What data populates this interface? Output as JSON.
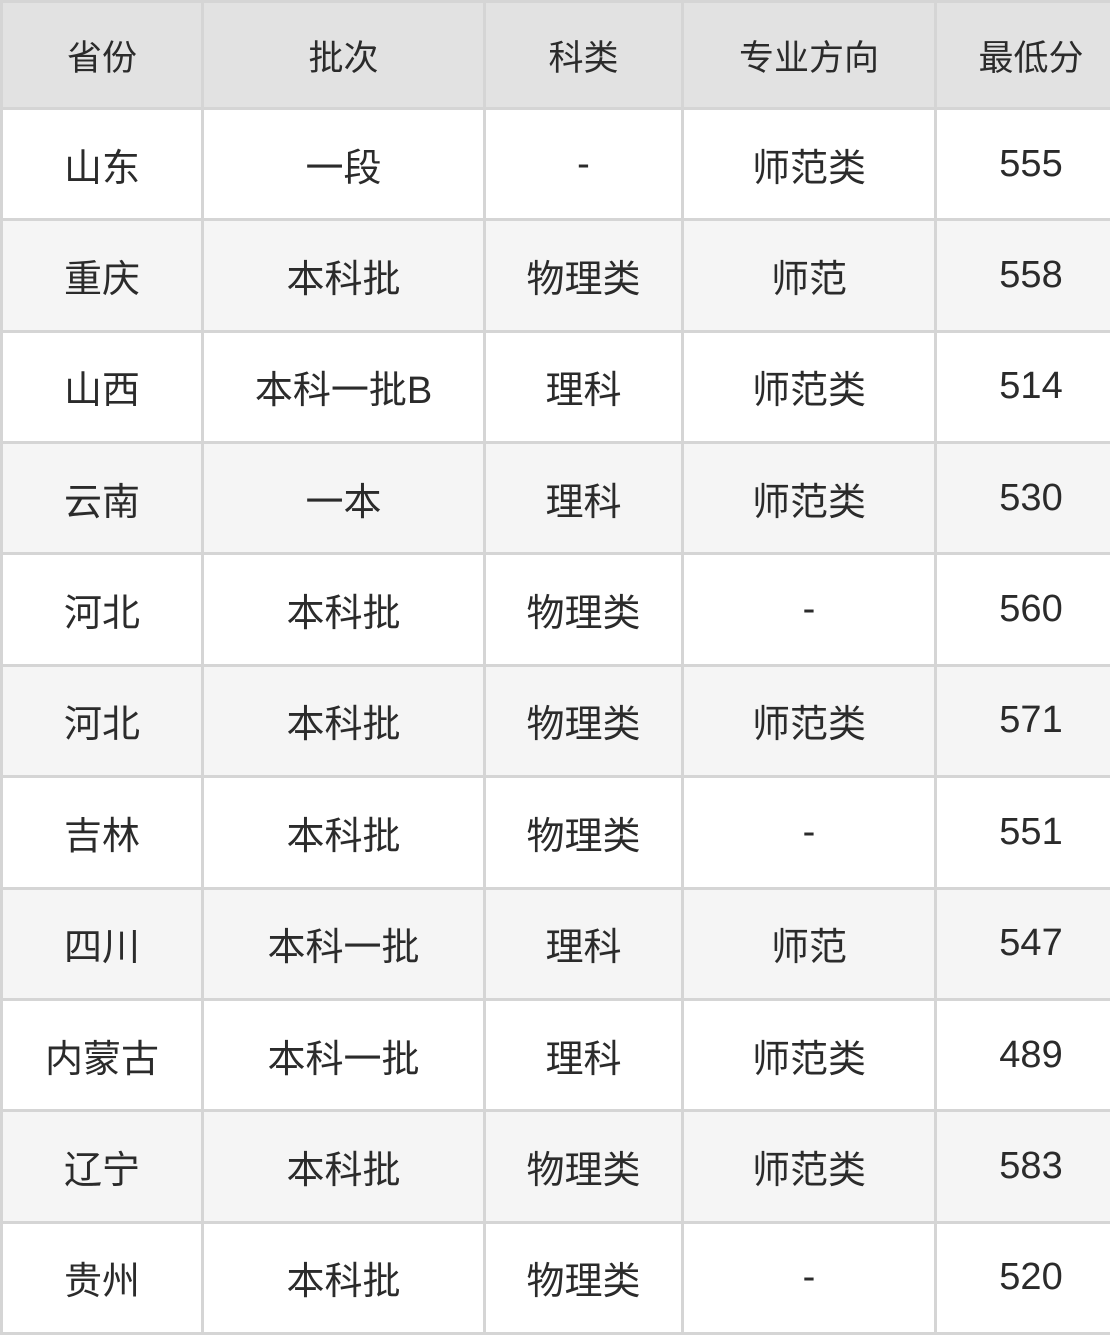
{
  "chart_data": {
    "type": "table",
    "columns": [
      "省份",
      "批次",
      "科类",
      "专业方向",
      "最低分"
    ],
    "rows": [
      [
        "山东",
        "一段",
        "-",
        "师范类",
        555
      ],
      [
        "重庆",
        "本科批",
        "物理类",
        "师范",
        558
      ],
      [
        "山西",
        "本科一批B",
        "理科",
        "师范类",
        514
      ],
      [
        "云南",
        "一本",
        "理科",
        "师范类",
        530
      ],
      [
        "河北",
        "本科批",
        "物理类",
        "-",
        560
      ],
      [
        "河北",
        "本科批",
        "物理类",
        "师范类",
        571
      ],
      [
        "吉林",
        "本科批",
        "物理类",
        "-",
        551
      ],
      [
        "四川",
        "本科一批",
        "理科",
        "师范",
        547
      ],
      [
        "内蒙古",
        "本科一批",
        "理科",
        "师范类",
        489
      ],
      [
        "辽宁",
        "本科批",
        "物理类",
        "师范类",
        583
      ],
      [
        "贵州",
        "本科批",
        "物理类",
        "-",
        520
      ]
    ]
  },
  "colors": {
    "header_bg": "#e2e2e2",
    "row_bg": "#ffffff",
    "row_alt_bg": "#f5f5f5",
    "border": "#d5d5d5",
    "text": "#2b2b2b"
  }
}
